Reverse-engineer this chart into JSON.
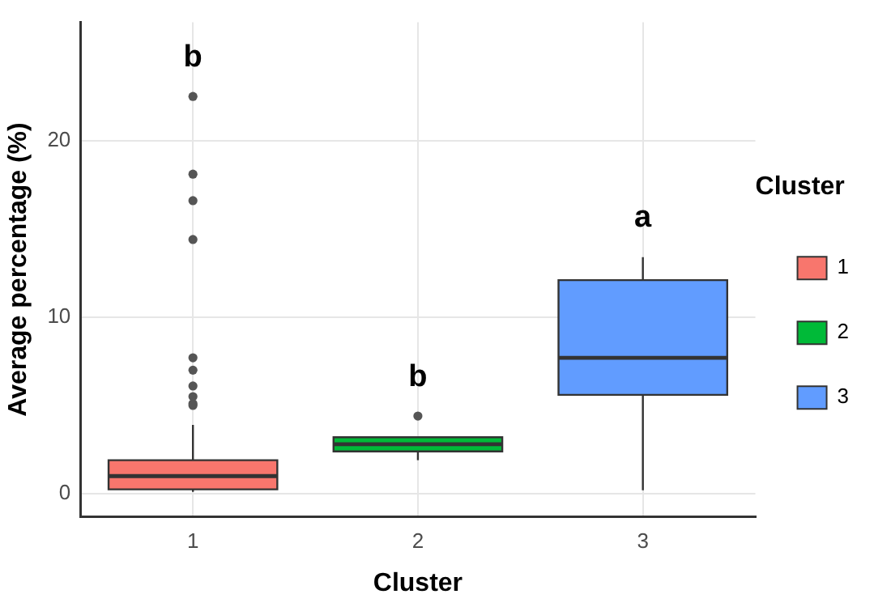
{
  "chart_data": {
    "type": "box",
    "xlabel": "Cluster",
    "ylabel": "Average percentage (%)",
    "legend_title": "Cluster",
    "categories": [
      "1",
      "2",
      "3"
    ],
    "series": [
      {
        "name": "1",
        "color": "#f8766d",
        "boxes": [
          {
            "low": 0.1,
            "q1": 0.25,
            "median": 1.0,
            "q3": 1.9,
            "high": 3.9,
            "outliers": [
              5.0,
              5.1,
              5.5,
              6.1,
              7.0,
              7.7,
              14.4,
              16.6,
              18.1,
              22.5
            ]
          },
          null,
          null
        ]
      },
      {
        "name": "2",
        "color": "#00ba38",
        "boxes": [
          null,
          {
            "low": 1.9,
            "q1": 2.4,
            "median": 2.8,
            "q3": 3.2,
            "high": 3.2,
            "outliers": [
              4.4
            ]
          },
          null
        ]
      },
      {
        "name": "3",
        "color": "#619cff",
        "boxes": [
          null,
          null,
          {
            "low": 0.2,
            "q1": 5.6,
            "median": 7.7,
            "q3": 12.1,
            "high": 13.4
          }
        ]
      }
    ],
    "annotations": [
      "b",
      "b",
      "a"
    ],
    "ylim": [
      -1.3,
      26.7
    ],
    "yticks": [
      0,
      10,
      20
    ],
    "grid": true,
    "legend": "right"
  }
}
